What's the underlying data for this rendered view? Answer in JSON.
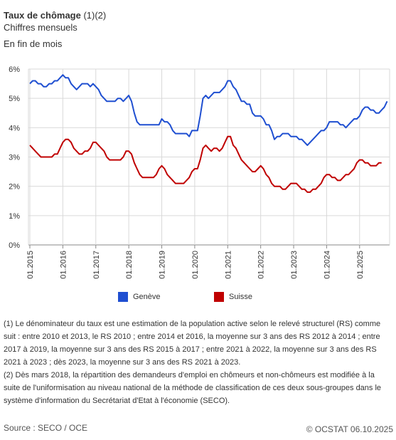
{
  "header": {
    "title_main": "Taux de chômage",
    "title_suffix": "(1)(2)",
    "subtitle": "Chiffres mensuels",
    "note": "En fin de mois"
  },
  "chart_data": {
    "type": "line",
    "title": "Taux de chômage (1)(2)",
    "subtitle": "Chiffres mensuels",
    "xlabel": "",
    "ylabel": "",
    "y_ticks": [
      "0%",
      "1%",
      "2%",
      "3%",
      "4%",
      "5%",
      "6%"
    ],
    "ylim": [
      0,
      6
    ],
    "x_ticks": [
      "01.2015",
      "01.2016",
      "01.2017",
      "01.2018",
      "01.2019",
      "01.2020",
      "01.2021",
      "01.2022",
      "01.2023",
      "01.2024",
      "01.2025"
    ],
    "x_start": "01.2015",
    "x_end": "08.2025",
    "grid": true,
    "legend_position": "bottom",
    "series": [
      {
        "name": "Genève",
        "color": "#1f4fd1",
        "values": [
          5.5,
          5.6,
          5.6,
          5.5,
          5.5,
          5.4,
          5.4,
          5.5,
          5.5,
          5.6,
          5.6,
          5.7,
          5.8,
          5.7,
          5.7,
          5.5,
          5.4,
          5.3,
          5.4,
          5.5,
          5.5,
          5.5,
          5.4,
          5.5,
          5.4,
          5.3,
          5.1,
          5.0,
          4.9,
          4.9,
          4.9,
          4.9,
          5.0,
          5.0,
          4.9,
          5.0,
          5.1,
          4.9,
          4.5,
          4.2,
          4.1,
          4.1,
          4.1,
          4.1,
          4.1,
          4.1,
          4.1,
          4.1,
          4.3,
          4.2,
          4.2,
          4.1,
          3.9,
          3.8,
          3.8,
          3.8,
          3.8,
          3.8,
          3.7,
          3.9,
          3.9,
          3.9,
          4.4,
          5.0,
          5.1,
          5.0,
          5.1,
          5.2,
          5.2,
          5.2,
          5.3,
          5.4,
          5.6,
          5.6,
          5.4,
          5.3,
          5.1,
          4.9,
          4.9,
          4.8,
          4.8,
          4.5,
          4.4,
          4.4,
          4.4,
          4.3,
          4.1,
          4.1,
          3.9,
          3.6,
          3.7,
          3.7,
          3.8,
          3.8,
          3.8,
          3.7,
          3.7,
          3.7,
          3.6,
          3.6,
          3.5,
          3.4,
          3.5,
          3.6,
          3.7,
          3.8,
          3.9,
          3.9,
          4.0,
          4.2,
          4.2,
          4.2,
          4.2,
          4.1,
          4.1,
          4.0,
          4.1,
          4.2,
          4.3,
          4.3,
          4.4,
          4.6,
          4.7,
          4.7,
          4.6,
          4.6,
          4.5,
          4.5,
          4.6,
          4.7,
          4.9
        ]
      },
      {
        "name": "Suisse",
        "color": "#c00000",
        "values": [
          3.4,
          3.3,
          3.2,
          3.1,
          3.0,
          3.0,
          3.0,
          3.0,
          3.0,
          3.1,
          3.1,
          3.3,
          3.5,
          3.6,
          3.6,
          3.5,
          3.3,
          3.2,
          3.1,
          3.1,
          3.2,
          3.2,
          3.3,
          3.5,
          3.5,
          3.4,
          3.3,
          3.2,
          3.0,
          2.9,
          2.9,
          2.9,
          2.9,
          2.9,
          3.0,
          3.2,
          3.2,
          3.1,
          2.8,
          2.6,
          2.4,
          2.3,
          2.3,
          2.3,
          2.3,
          2.3,
          2.4,
          2.6,
          2.7,
          2.6,
          2.4,
          2.3,
          2.2,
          2.1,
          2.1,
          2.1,
          2.1,
          2.2,
          2.3,
          2.5,
          2.6,
          2.6,
          2.9,
          3.3,
          3.4,
          3.3,
          3.2,
          3.3,
          3.3,
          3.2,
          3.3,
          3.5,
          3.7,
          3.7,
          3.4,
          3.3,
          3.1,
          2.9,
          2.8,
          2.7,
          2.6,
          2.5,
          2.5,
          2.6,
          2.7,
          2.6,
          2.4,
          2.3,
          2.1,
          2.0,
          2.0,
          2.0,
          1.9,
          1.9,
          2.0,
          2.1,
          2.1,
          2.1,
          2.0,
          1.9,
          1.9,
          1.8,
          1.8,
          1.9,
          1.9,
          2.0,
          2.1,
          2.3,
          2.4,
          2.4,
          2.3,
          2.3,
          2.2,
          2.2,
          2.3,
          2.4,
          2.4,
          2.5,
          2.6,
          2.8,
          2.9,
          2.9,
          2.8,
          2.8,
          2.7,
          2.7,
          2.7,
          2.8,
          2.8
        ]
      }
    ]
  },
  "footnotes": [
    "(1) Le dénominateur du taux est une estimation de la population active selon le relevé structurel (RS) comme suit : entre 2010 et 2013, le RS 2010 ; entre 2014 et 2016, la moyenne sur 3 ans des RS 2012 à 2014 ; entre 2017 à 2019, la moyenne sur 3 ans des RS 2015 à 2017 ; entre 2021 à 2022, la moyenne sur 3 ans des RS 2021 à 2023 ; dès 2023, la moyenne sur 3 ans des RS 2021 à 2023.",
    "(2) Dès mars 2018, la répartition des demandeurs d'emploi en chômeurs et non-chômeurs est modifiée à la suite de l'uniformisation au niveau national de la méthode de classification de ces deux sous-groupes dans le système d'information du Secrétariat d'Etat à l'économie (SECO)."
  ],
  "footer": {
    "source": "Source : SECO / OCE",
    "copyright": "© OCSTAT 06.10.2025"
  }
}
